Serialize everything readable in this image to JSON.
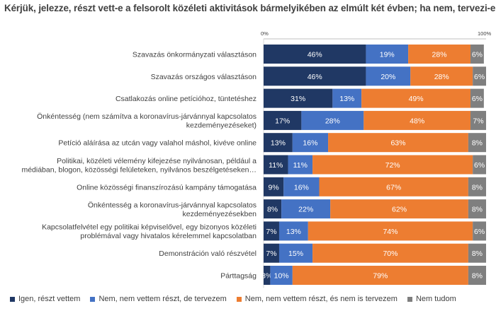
{
  "chart_data": {
    "type": "bar",
    "orientation": "horizontal",
    "stacked": true,
    "title": "Kérjük, jelezze, részt vett-e a felsorolt közéleti aktivitások bármelyikében az elmúlt két évben; ha nem, tervezi-e!",
    "xlim": [
      0,
      100
    ],
    "xticks": [
      "0%",
      "100%"
    ],
    "legend_position": "bottom",
    "grid": false,
    "categories": [
      [
        "Szavazás önkormányzati választáson"
      ],
      [
        "Szavazás országos választáson"
      ],
      [
        "Csatlakozás online petícióhoz, tüntetéshez"
      ],
      [
        "Önkéntesség (nem számítva a koronavírus-járvánnyal kapcsolatos",
        "kezdeményezéseket)"
      ],
      [
        "Petíció aláírása az utcán vagy valahol máshol, kivéve online"
      ],
      [
        "Politikai, közéleti vélemény kifejezése nyilvánosan, például a",
        "médiában, blogon, közösségi felületeken, nyilvános beszélgetéseken…"
      ],
      [
        "Online közösségi finanszírozású kampány támogatása"
      ],
      [
        "Önkéntesség a koronavírus-járvánnyal kapcsolatos",
        "kezdeményezésekben"
      ],
      [
        "Kapcsolatfelvétel egy politikai képviselővel, egy bizonyos közéleti",
        "problémával vagy hivatalos kérelemmel kapcsolatban"
      ],
      [
        "Demonstráción való részvétel"
      ],
      [
        "Párttagság"
      ]
    ],
    "series": [
      {
        "name": "Igen, részt vettem",
        "color": "#203864",
        "values": [
          46,
          46,
          31,
          17,
          13,
          11,
          9,
          8,
          7,
          7,
          3
        ],
        "labels": [
          "46%",
          "46%",
          "31%",
          "17%",
          "13%",
          "11%",
          "9%",
          "8%",
          "7%",
          "7%",
          "3%"
        ]
      },
      {
        "name": "Nem, nem vettem részt, de tervezem",
        "color": "#4472c4",
        "values": [
          19,
          20,
          13,
          28,
          16,
          11,
          16,
          22,
          13,
          15,
          10
        ],
        "labels": [
          "19%",
          "20%",
          "13%",
          "28%",
          "16%",
          "11%",
          "16%",
          "22%",
          "13%",
          "15%",
          "10%"
        ]
      },
      {
        "name": "Nem, nem vettem részt, és nem is tervezem",
        "color": "#ed7d31",
        "values": [
          28,
          28,
          49,
          48,
          63,
          72,
          67,
          62,
          74,
          70,
          79
        ],
        "labels": [
          "28%",
          "28%",
          "49%",
          "48%",
          "63%",
          "72%",
          "67%",
          "62%",
          "74%",
          "70%",
          "79%"
        ]
      },
      {
        "name": "Nem tudom",
        "color": "#7f7f7f",
        "values": [
          6,
          6,
          6,
          7,
          8,
          6,
          8,
          8,
          6,
          8,
          8
        ],
        "labels": [
          "6%",
          "6%",
          "6%",
          "7%",
          "8%",
          "6%",
          "8%",
          "8%",
          "6%",
          "8%",
          "8%"
        ]
      }
    ]
  }
}
